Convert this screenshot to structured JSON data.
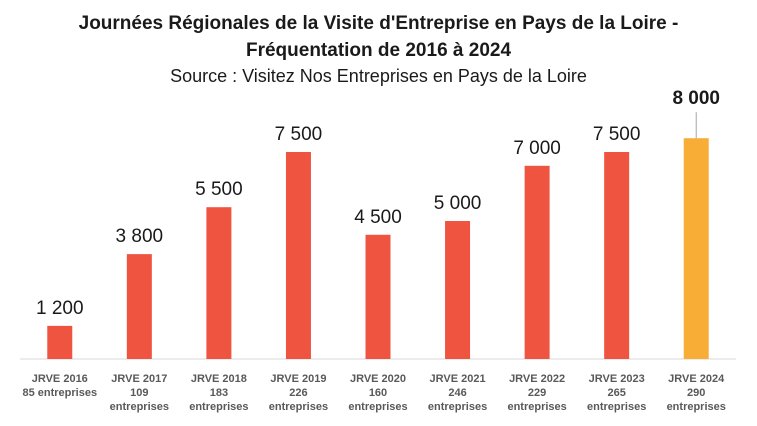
{
  "chart_data": {
    "type": "bar",
    "title": "Journées Régionales de la Visite d'Entreprise en Pays de la Loire - Fréquentation de 2016 à 2024",
    "subtitle": "Source : Visitez Nos Entreprises en Pays de la Loire",
    "xlabel": "",
    "ylabel": "",
    "ylim": [
      0,
      10000
    ],
    "grid": false,
    "categories": [
      [
        "JRVE 2016",
        "85 entreprises"
      ],
      [
        "JRVE 2017",
        "109",
        "entreprises"
      ],
      [
        "JRVE 2018",
        "183",
        "entreprises"
      ],
      [
        "JRVE 2019",
        "226",
        "entreprises"
      ],
      [
        "JRVE 2020",
        "160",
        "entreprises"
      ],
      [
        "JRVE 2021",
        "246",
        "entreprises"
      ],
      [
        "JRVE 2022",
        "229",
        "entreprises"
      ],
      [
        "JRVE 2023",
        "265",
        "entreprises"
      ],
      [
        "JRVE 2024",
        "290",
        "entreprises"
      ]
    ],
    "values": [
      1200,
      3800,
      5500,
      7500,
      4500,
      5000,
      7000,
      7500,
      8000
    ],
    "data_labels": [
      "1 200",
      "3 800",
      "5 500",
      "7 500",
      "4 500",
      "5 000",
      "7 000",
      "7 500",
      "8 000"
    ],
    "highlight_index": 8,
    "colors": {
      "bar": "#EE5440",
      "highlight": "#F8AE36",
      "axis": "#D9D9D9",
      "leader_line": "#A6A6A6"
    }
  }
}
